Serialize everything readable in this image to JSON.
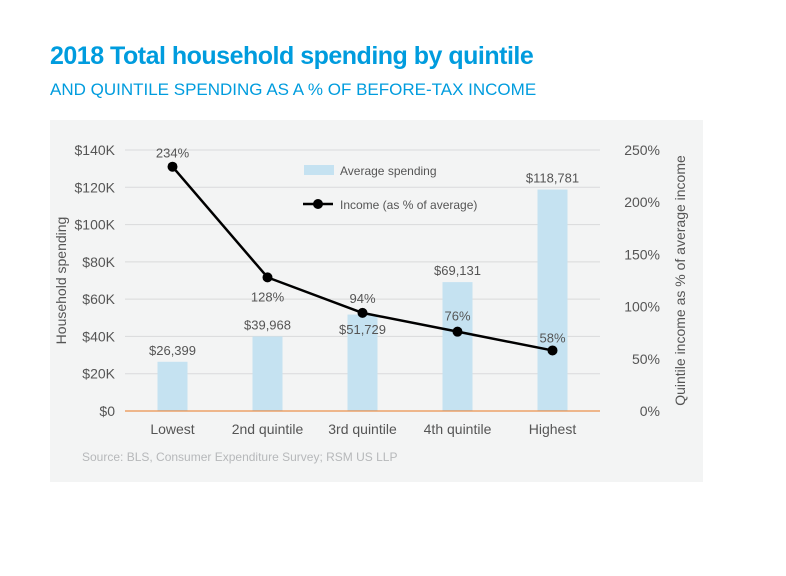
{
  "title": "2018 Total household spending by quintile",
  "subtitle": "AND QUINTILE SPENDING AS A % OF BEFORE-TAX INCOME",
  "source": "Source: BLS, Consumer Expenditure Survey; RSM US LLP",
  "chart_data": {
    "type": "bar+line",
    "categories": [
      "Lowest",
      "2nd quintile",
      "3rd quintile",
      "4th quintile",
      "Highest"
    ],
    "series": [
      {
        "name": "Average spending",
        "type": "bar",
        "axis": "left",
        "values": [
          26399,
          39968,
          51729,
          69131,
          118781
        ],
        "labels": [
          "$26,399",
          "$39,968",
          "$51,729",
          "$69,131",
          "$118,781"
        ],
        "color": "#c5e2f1"
      },
      {
        "name": "Income (as % of average)",
        "type": "line",
        "axis": "right",
        "values": [
          234,
          128,
          94,
          76,
          58
        ],
        "labels": [
          "234%",
          "128%",
          "94%",
          "76%",
          "58%"
        ],
        "color": "#000000"
      }
    ],
    "ylabel": "Household spending",
    "y2label": "Quintile income as % of average income",
    "ylim": [
      0,
      140000
    ],
    "y2lim": [
      0,
      250
    ],
    "yticks": [
      "$0",
      "$20K",
      "$40K",
      "$60K",
      "$80K",
      "$100K",
      "$120K",
      "$140K"
    ],
    "y2ticks": [
      "0%",
      "50%",
      "100%",
      "150%",
      "200%",
      "250%"
    ],
    "grid": true,
    "legend": "top-center",
    "baseline_color": "#e87722"
  }
}
